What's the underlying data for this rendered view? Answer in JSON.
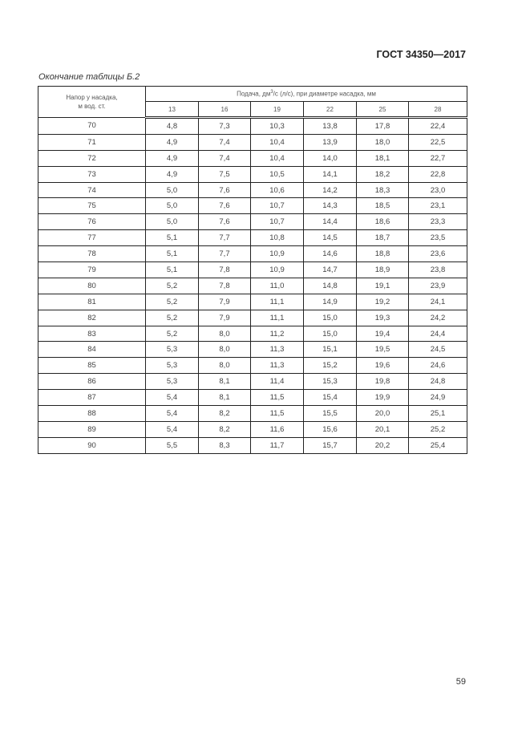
{
  "header": {
    "doc_id": "ГОСТ 34350—2017"
  },
  "caption": "Окончание таблицы Б.2",
  "table": {
    "col0_header_line1": "Напор у насадка,",
    "col0_header_line2": "м вод. ст.",
    "group_header_pre": "Подача, дм",
    "group_header_sup": "3",
    "group_header_post": "/с (л/с), при диаметре насадка, мм",
    "diameters": [
      "13",
      "16",
      "19",
      "22",
      "25",
      "28"
    ],
    "rows": [
      [
        "70",
        "4,8",
        "7,3",
        "10,3",
        "13,8",
        "17,8",
        "22,4"
      ],
      [
        "71",
        "4,9",
        "7,4",
        "10,4",
        "13,9",
        "18,0",
        "22,5"
      ],
      [
        "72",
        "4,9",
        "7,4",
        "10,4",
        "14,0",
        "18,1",
        "22,7"
      ],
      [
        "73",
        "4,9",
        "7,5",
        "10,5",
        "14,1",
        "18,2",
        "22,8"
      ],
      [
        "74",
        "5,0",
        "7,6",
        "10,6",
        "14,2",
        "18,3",
        "23,0"
      ],
      [
        "75",
        "5,0",
        "7,6",
        "10,7",
        "14,3",
        "18,5",
        "23,1"
      ],
      [
        "76",
        "5,0",
        "7,6",
        "10,7",
        "14,4",
        "18,6",
        "23,3"
      ],
      [
        "77",
        "5,1",
        "7,7",
        "10,8",
        "14,5",
        "18,7",
        "23,5"
      ],
      [
        "78",
        "5,1",
        "7,7",
        "10,9",
        "14,6",
        "18,8",
        "23,6"
      ],
      [
        "79",
        "5,1",
        "7,8",
        "10,9",
        "14,7",
        "18,9",
        "23,8"
      ],
      [
        "80",
        "5,2",
        "7,8",
        "11,0",
        "14,8",
        "19,1",
        "23,9"
      ],
      [
        "81",
        "5,2",
        "7,9",
        "11,1",
        "14,9",
        "19,2",
        "24,1"
      ],
      [
        "82",
        "5,2",
        "7,9",
        "11,1",
        "15,0",
        "19,3",
        "24,2"
      ],
      [
        "83",
        "5,2",
        "8,0",
        "11,2",
        "15,0",
        "19,4",
        "24,4"
      ],
      [
        "84",
        "5,3",
        "8,0",
        "11,3",
        "15,1",
        "19,5",
        "24,5"
      ],
      [
        "85",
        "5,3",
        "8,0",
        "11,3",
        "15,2",
        "19,6",
        "24,6"
      ],
      [
        "86",
        "5,3",
        "8,1",
        "11,4",
        "15,3",
        "19,8",
        "24,8"
      ],
      [
        "87",
        "5,4",
        "8,1",
        "11,5",
        "15,4",
        "19,9",
        "24,9"
      ],
      [
        "88",
        "5,4",
        "8,2",
        "11,5",
        "15,5",
        "20,0",
        "25,1"
      ],
      [
        "89",
        "5,4",
        "8,2",
        "11,6",
        "15,6",
        "20,1",
        "25,2"
      ],
      [
        "90",
        "5,5",
        "8,3",
        "11,7",
        "15,7",
        "20,2",
        "25,4"
      ]
    ]
  },
  "page_number": "59"
}
